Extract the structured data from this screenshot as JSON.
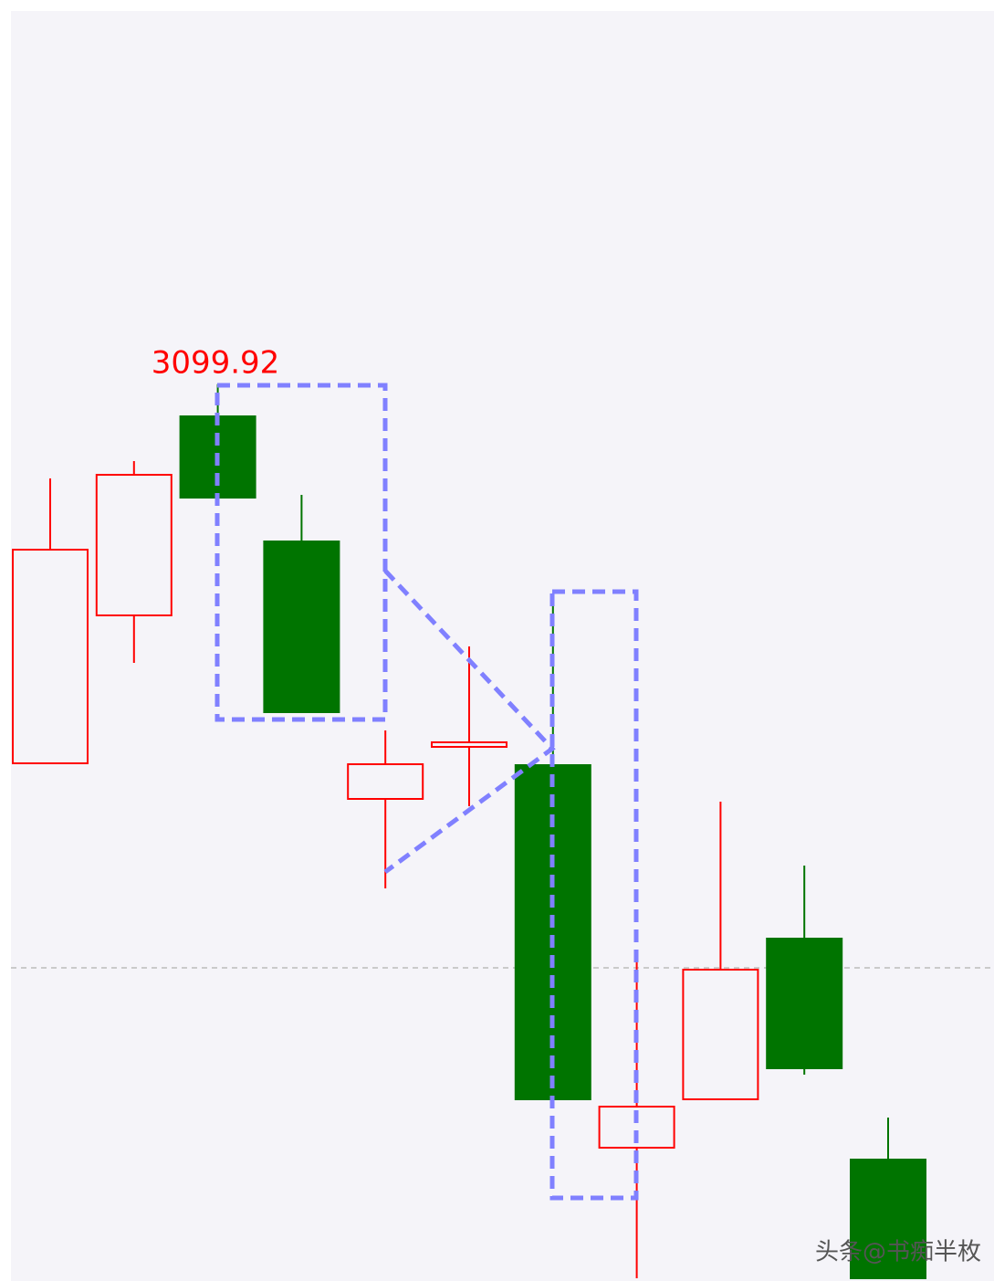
{
  "chart_data": {
    "type": "candlestick",
    "open": [
      3058.4,
      3074.6,
      3096.4,
      3082.7,
      3054.5,
      3060.2,
      3058.2,
      3016.3,
      3021.6,
      3039.2,
      3015.0
    ],
    "high": [
      3089.6,
      3091.5,
      3099.92,
      3087.8,
      3062.0,
      3071.2,
      3077.0,
      3037.0,
      3054.2,
      3047.2,
      3019.6
    ],
    "low": [
      3058.4,
      3069.4,
      3087.5,
      3064.0,
      3044.7,
      3053.7,
      3021.6,
      3002.0,
      3021.6,
      3024.3,
      3002.0
    ],
    "close": [
      3081.8,
      3090.0,
      3087.5,
      3064.0,
      3058.3,
      3060.7,
      3021.6,
      3020.8,
      3035.8,
      3025.0,
      3002.0
    ],
    "ylim": [
      3002,
      3142
    ],
    "up_color": "#ff0000",
    "down_color": "#007400",
    "reference_line": 3036,
    "peak_label": "3099.92",
    "watermark": "头条@书痴半枚"
  }
}
